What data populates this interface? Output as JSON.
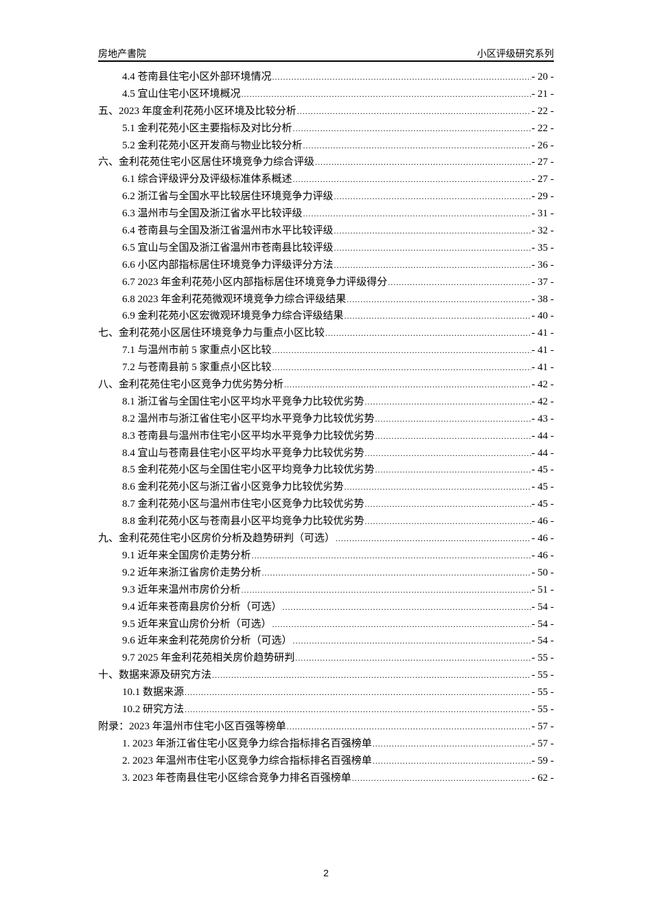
{
  "header": {
    "left": "房地产書院",
    "right": "小区评级研究系列"
  },
  "toc": [
    {
      "level": 2,
      "label": "4.4 苍南县住宅小区外部环境情况",
      "page": "- 20 -"
    },
    {
      "level": 2,
      "label": "4.5 宜山住宅小区环境概况",
      "page": "- 21 -"
    },
    {
      "level": 1,
      "label": "五、2023 年度金利花苑小区环境及比较分析",
      "page": "- 22 -"
    },
    {
      "level": 2,
      "label": "5.1 金利花苑小区主要指标及对比分析",
      "page": "- 22 -"
    },
    {
      "level": 2,
      "label": "5.2 金利花苑小区开发商与物业比较分析",
      "page": "- 26 -"
    },
    {
      "level": 1,
      "label": "六、金利花苑住宅小区居住环境竞争力综合评级",
      "page": "- 27 -"
    },
    {
      "level": 2,
      "label": "6.1 综合评级评分及评级标准体系概述",
      "page": "- 27 -"
    },
    {
      "level": 2,
      "label": "6.2 浙江省与全国水平比较居住环境竞争力评级",
      "page": "- 29 -"
    },
    {
      "level": 2,
      "label": "6.3 温州市与全国及浙江省水平比较评级",
      "page": "- 31 -"
    },
    {
      "level": 2,
      "label": "6.4 苍南县与全国及浙江省温州市水平比较评级",
      "page": "- 32 -"
    },
    {
      "level": 2,
      "label": "6.5 宜山与全国及浙江省温州市苍南县比较评级",
      "page": "- 35 -"
    },
    {
      "level": 2,
      "label": "6.6 小区内部指标居住环境竞争力评级评分方法",
      "page": "- 36 -"
    },
    {
      "level": 2,
      "label": "6.7 2023 年金利花苑小区内部指标居住环境竞争力评级得分",
      "page": "- 37 -"
    },
    {
      "level": 2,
      "label": "6.8 2023 年金利花苑微观环境竞争力综合评级结果",
      "page": "- 38 -"
    },
    {
      "level": 2,
      "label": "6.9 金利花苑小区宏微观环境竞争力综合评级结果",
      "page": "- 40 -"
    },
    {
      "level": 1,
      "label": "七、金利花苑小区居住环境竞争力与重点小区比较",
      "page": "- 41 -"
    },
    {
      "level": 2,
      "label": "7.1 与温州市前 5 家重点小区比较",
      "page": "- 41 -"
    },
    {
      "level": 2,
      "label": "7.2 与苍南县前 5 家重点小区比较",
      "page": "- 41 -"
    },
    {
      "level": 1,
      "label": "八、金利花苑住宅小区竞争力优劣势分析",
      "page": "- 42 -"
    },
    {
      "level": 2,
      "label": "8.1 浙江省与全国住宅小区平均水平竞争力比较优劣势",
      "page": "- 42 -"
    },
    {
      "level": 2,
      "label": "8.2 温州市与浙江省住宅小区平均水平竞争力比较优劣势",
      "page": "- 43 -"
    },
    {
      "level": 2,
      "label": "8.3 苍南县与温州市住宅小区平均水平竞争力比较优劣势",
      "page": "- 44 -"
    },
    {
      "level": 2,
      "label": "8.4 宜山与苍南县住宅小区平均水平竞争力比较优劣势",
      "page": "- 44 -"
    },
    {
      "level": 2,
      "label": "8.5 金利花苑小区与全国住宅小区平均竞争力比较优劣势",
      "page": "- 45 -"
    },
    {
      "level": 2,
      "label": "8.6 金利花苑小区与浙江省小区竞争力比较优劣势",
      "page": "- 45 -"
    },
    {
      "level": 2,
      "label": "8.7 金利花苑小区与温州市住宅小区竞争力比较优劣势",
      "page": "- 45 -"
    },
    {
      "level": 2,
      "label": "8.8 金利花苑小区与苍南县小区平均竞争力比较优劣势",
      "page": "- 46 -"
    },
    {
      "level": 1,
      "label": "九、金利花苑住宅小区房价分析及趋势研判（可选）",
      "page": "- 46 -"
    },
    {
      "level": 2,
      "label": "9.1 近年来全国房价走势分析",
      "page": "- 46 -"
    },
    {
      "level": 2,
      "label": "9.2 近年来浙江省房价走势分析",
      "page": "- 50 -"
    },
    {
      "level": 2,
      "label": "9.3 近年来温州市房价分析",
      "page": "- 51 -"
    },
    {
      "level": 2,
      "label": "9.4 近年来苍南县房价分析（可选）",
      "page": "- 54 -"
    },
    {
      "level": 2,
      "label": "9.5 近年来宜山房价分析（可选）",
      "page": "- 54 -"
    },
    {
      "level": 2,
      "label": "9.6 近年来金利花苑房价分析（可选）",
      "page": "- 54 -"
    },
    {
      "level": 2,
      "label": "9.7 2025 年金利花苑相关房价趋势研判",
      "page": "- 55 -"
    },
    {
      "level": 1,
      "label": "十、数据来源及研究方法",
      "page": "- 55 -"
    },
    {
      "level": 2,
      "label": "10.1 数据来源",
      "page": "- 55 -"
    },
    {
      "level": 2,
      "label": "10.2 研究方法",
      "page": "- 55 -"
    },
    {
      "level": 1,
      "label": "附录：2023 年温州市住宅小区百强等榜单",
      "page": "- 57 -"
    },
    {
      "level": 2,
      "label": "1. 2023 年浙江省住宅小区竞争力综合指标排名百强榜单",
      "page": "- 57 -"
    },
    {
      "level": 2,
      "label": "2. 2023 年温州市住宅小区竞争力综合指标排名百强榜单",
      "page": "- 59 -"
    },
    {
      "level": 2,
      "label": "3. 2023 年苍南县住宅小区综合竞争力排名百强榜单",
      "page": "- 62 -"
    }
  ],
  "footer": {
    "page_number": "2"
  }
}
